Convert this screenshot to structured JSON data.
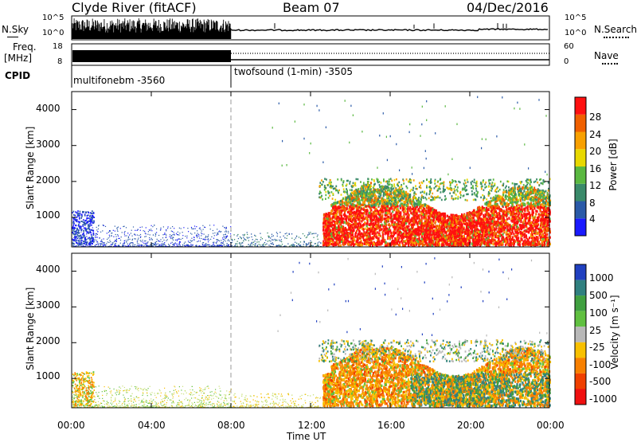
{
  "header": {
    "station": "Clyde River (fitACF)",
    "beam": "Beam 07",
    "date": "04/Dec/2016"
  },
  "panels": {
    "nsky_label": "N.Sky",
    "nsky_ticks": [
      "10^5",
      "10^0"
    ],
    "nsearch_ticks": [
      "10^5",
      "10^0"
    ],
    "nsearch_label": "N.Search",
    "freq_label_1": "Freq.",
    "freq_label_2": "[MHz]",
    "freq_ticks": [
      "18",
      "8"
    ],
    "nave_ticks": [
      "60",
      "0"
    ],
    "nave_label": "Nave",
    "cpid_label": "CPID",
    "cpid_1": "multifonebm  -3560",
    "cpid_2": "twofsound (1-min)  -3505"
  },
  "chart_data": [
    {
      "type": "heatmap",
      "ylabel": "Slant Range [km]",
      "yticks": [
        "1000",
        "2000",
        "3000",
        "4000"
      ],
      "colorbar_label": "Power [dB]",
      "colorbar_ticks": [
        "4",
        "8",
        "12",
        "16",
        "20",
        "24",
        "28"
      ],
      "colorbar_colors": [
        "#1a1aff",
        "#2a5aa8",
        "#3a8a6a",
        "#5ab840",
        "#e8d800",
        "#f8a000",
        "#f06000",
        "#ff1010"
      ]
    },
    {
      "type": "heatmap",
      "ylabel": "Slant Range [km]",
      "yticks": [
        "1000",
        "2000",
        "3000",
        "4000"
      ],
      "colorbar_label": "Velocity [m s⁻¹]",
      "colorbar_ticks": [
        "1000",
        "500",
        "100",
        "25",
        "-25",
        "-100",
        "-500",
        "-1000"
      ],
      "colorbar_colors": [
        "#2040c0",
        "#308080",
        "#40a040",
        "#60c040",
        "#b8b8b8",
        "#f8c000",
        "#f88000",
        "#f04000",
        "#f01010"
      ]
    }
  ],
  "xaxis": {
    "label": "Time UT",
    "ticks": [
      "00:00",
      "04:00",
      "08:00",
      "12:00",
      "16:00",
      "20:00",
      "00:00"
    ]
  }
}
